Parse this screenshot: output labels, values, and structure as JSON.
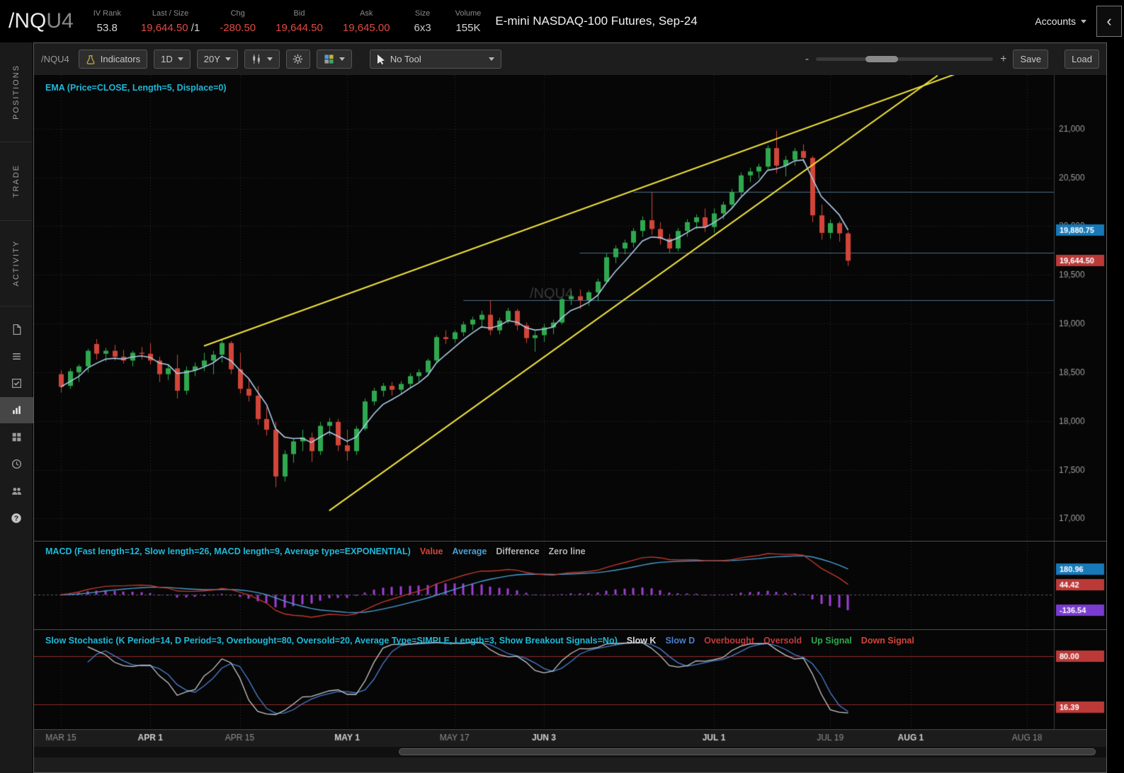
{
  "header": {
    "symbol": "/NQ",
    "symbol_suffix": "U4",
    "fields": [
      {
        "label": "IV Rank",
        "value": "53.8",
        "color": "#d8d8d8"
      },
      {
        "label": "Last / Size",
        "value": "19,644.50",
        "suffix": " /1",
        "color": "#e04a42"
      },
      {
        "label": "Chg",
        "value": "-280.50",
        "color": "#e04a42"
      },
      {
        "label": "Bid",
        "value": "19,644.50",
        "color": "#e04a42"
      },
      {
        "label": "Ask",
        "value": "19,645.00",
        "color": "#e04a42"
      },
      {
        "label": "Size",
        "value": "6x3",
        "color": "#c8c8c8"
      },
      {
        "label": "Volume",
        "value": "155K",
        "color": "#d8d8d8"
      }
    ],
    "description": "E-mini NASDAQ-100 Futures, Sep-24",
    "accounts_label": "Accounts"
  },
  "sidebar": {
    "tabs": [
      "POSITIONS",
      "TRADE",
      "ACTIVITY"
    ],
    "icons": [
      "document-icon",
      "list-icon",
      "checklist-icon",
      "chart-icon",
      "grid-icon",
      "clock-icon",
      "people-icon",
      "help-icon"
    ],
    "active_icon": "chart-icon"
  },
  "toolbar": {
    "symbol": "/NQU4",
    "indicators_label": "Indicators",
    "timeframe": "1D",
    "range": "20Y",
    "tool_label": "No Tool",
    "zoom_minus": "-",
    "zoom_plus": "+",
    "save_label": "Save",
    "load_label": "Load"
  },
  "chart_data": {
    "type": "candlestick",
    "symbol_watermark": "/NQU4",
    "up_color": "#2fa84f",
    "down_color": "#d24539",
    "price_axis": {
      "min": 16770,
      "max": 21550,
      "ticks": [
        {
          "v": 21000,
          "label": "21,000"
        },
        {
          "v": 20500,
          "label": "20,500"
        },
        {
          "v": 20000,
          "label": "20,000"
        },
        {
          "v": 19500,
          "label": "19,500"
        },
        {
          "v": 19000,
          "label": "19,000"
        },
        {
          "v": 18500,
          "label": "18,500"
        },
        {
          "v": 18000,
          "label": "18,000"
        },
        {
          "v": 17500,
          "label": "17,500"
        },
        {
          "v": 17000,
          "label": "17,000"
        }
      ]
    },
    "x_domain": {
      "left_pad_days": 3,
      "total_days": 114
    },
    "x_ticks": [
      {
        "label": "MAR 15",
        "day": 0,
        "bold": false
      },
      {
        "label": "APR 1",
        "day": 10,
        "bold": true
      },
      {
        "label": "APR 15",
        "day": 20,
        "bold": false
      },
      {
        "label": "MAY 1",
        "day": 32,
        "bold": true
      },
      {
        "label": "MAY 17",
        "day": 44,
        "bold": false
      },
      {
        "label": "JUN 3",
        "day": 54,
        "bold": true
      },
      {
        "label": "JUL 1",
        "day": 73,
        "bold": true
      },
      {
        "label": "JUL 19",
        "day": 86,
        "bold": false
      },
      {
        "label": "AUG 1",
        "day": 95,
        "bold": true
      },
      {
        "label": "AUG 18",
        "day": 108,
        "bold": false
      }
    ],
    "ema": {
      "label": "EMA (Price=CLOSE, Length=5, Displace=0)",
      "length": 5,
      "color": "#aecbe8"
    },
    "trendlines": [
      {
        "x1_day": 16,
        "y1_price": 18770,
        "x2_day": 100,
        "y2_price": 21560,
        "color": "#f0e33a"
      },
      {
        "x1_day": 30,
        "y1_price": 17080,
        "x2_day": 98,
        "y2_price": 21545,
        "color": "#f0e33a"
      }
    ],
    "horizontal_lines": [
      {
        "price": 20350,
        "from_day": 64,
        "color": "#4a7088"
      },
      {
        "price": 19730,
        "from_day": 58,
        "color": "#4a7088"
      },
      {
        "price": 19240,
        "from_day": 45,
        "color": "#4a7088"
      }
    ],
    "axis_badges": [
      {
        "text": "19,880.75",
        "series": "ema",
        "color": "#1779b8"
      },
      {
        "text": "19,644.50",
        "series": "last",
        "color": "#bb3a38"
      }
    ],
    "candles": [
      [
        "3/15",
        18480,
        18520,
        18290,
        18350
      ],
      [
        "3/18",
        18360,
        18540,
        18330,
        18510
      ],
      [
        "3/19",
        18500,
        18580,
        18400,
        18560
      ],
      [
        "3/20",
        18560,
        18740,
        18500,
        18720
      ],
      [
        "3/21",
        18790,
        18840,
        18630,
        18690
      ],
      [
        "3/22",
        18690,
        18750,
        18610,
        18720
      ],
      [
        "3/25",
        18720,
        18780,
        18620,
        18660
      ],
      [
        "3/26",
        18660,
        18730,
        18590,
        18620
      ],
      [
        "3/27",
        18620,
        18720,
        18560,
        18700
      ],
      [
        "3/28",
        18700,
        18760,
        18630,
        18690
      ],
      [
        "4/1",
        18690,
        18800,
        18580,
        18620
      ],
      [
        "4/2",
        18620,
        18660,
        18400,
        18480
      ],
      [
        "4/3",
        18480,
        18570,
        18420,
        18540
      ],
      [
        "4/4",
        18540,
        18680,
        18230,
        18310
      ],
      [
        "4/5",
        18310,
        18560,
        18270,
        18520
      ],
      [
        "4/8",
        18520,
        18600,
        18460,
        18560
      ],
      [
        "4/9",
        18560,
        18700,
        18510,
        18620
      ],
      [
        "4/10",
        18620,
        18720,
        18480,
        18680
      ],
      [
        "4/11",
        18680,
        18840,
        18600,
        18800
      ],
      [
        "4/12",
        18800,
        18820,
        18480,
        18530
      ],
      [
        "4/15",
        18530,
        18700,
        18280,
        18330
      ],
      [
        "4/16",
        18330,
        18430,
        18200,
        18260
      ],
      [
        "4/17",
        18260,
        18360,
        17960,
        18020
      ],
      [
        "4/18",
        18020,
        18140,
        17850,
        17910
      ],
      [
        "4/19",
        17910,
        17990,
        17320,
        17430
      ],
      [
        "4/22",
        17430,
        17700,
        17380,
        17660
      ],
      [
        "4/23",
        17660,
        17820,
        17570,
        17790
      ],
      [
        "4/24",
        17790,
        17910,
        17690,
        17830
      ],
      [
        "4/25",
        17830,
        17880,
        17580,
        17690
      ],
      [
        "4/26",
        17690,
        17990,
        17650,
        17950
      ],
      [
        "4/29",
        17950,
        18030,
        17850,
        17990
      ],
      [
        "4/30",
        17990,
        18020,
        17690,
        17750
      ],
      [
        "5/1",
        17750,
        17910,
        17590,
        17690
      ],
      [
        "5/2",
        17690,
        17950,
        17650,
        17920
      ],
      [
        "5/3",
        17920,
        18230,
        17900,
        18200
      ],
      [
        "5/6",
        18200,
        18340,
        18160,
        18310
      ],
      [
        "5/7",
        18310,
        18390,
        18250,
        18360
      ],
      [
        "5/8",
        18360,
        18400,
        18260,
        18320
      ],
      [
        "5/9",
        18320,
        18410,
        18270,
        18380
      ],
      [
        "5/10",
        18380,
        18490,
        18340,
        18460
      ],
      [
        "5/13",
        18460,
        18530,
        18400,
        18500
      ],
      [
        "5/14",
        18500,
        18640,
        18460,
        18620
      ],
      [
        "5/15",
        18620,
        18880,
        18600,
        18860
      ],
      [
        "5/16",
        18860,
        18930,
        18790,
        18840
      ],
      [
        "5/17",
        18840,
        18930,
        18800,
        18910
      ],
      [
        "5/20",
        18910,
        19020,
        18870,
        18990
      ],
      [
        "5/21",
        18990,
        19070,
        18930,
        19040
      ],
      [
        "5/22",
        19040,
        19130,
        18970,
        19090
      ],
      [
        "5/23",
        19090,
        19240,
        18880,
        18930
      ],
      [
        "5/24",
        18930,
        19060,
        18890,
        19030
      ],
      [
        "5/28",
        19030,
        19160,
        19000,
        19130
      ],
      [
        "5/29",
        19130,
        19150,
        18930,
        18980
      ],
      [
        "5/30",
        18980,
        19010,
        18800,
        18850
      ],
      [
        "5/31",
        18850,
        18920,
        18710,
        18880
      ],
      [
        "6/3",
        18880,
        19000,
        18810,
        18960
      ],
      [
        "6/4",
        18960,
        19040,
        18890,
        19010
      ],
      [
        "6/5",
        19010,
        19270,
        18990,
        19250
      ],
      [
        "6/6",
        19250,
        19340,
        19190,
        19280
      ],
      [
        "6/7",
        19280,
        19350,
        19150,
        19240
      ],
      [
        "6/10",
        19240,
        19340,
        19180,
        19320
      ],
      [
        "6/11",
        19320,
        19460,
        19230,
        19430
      ],
      [
        "6/12",
        19430,
        19720,
        19410,
        19680
      ],
      [
        "6/13",
        19680,
        19800,
        19620,
        19770
      ],
      [
        "6/14",
        19770,
        19860,
        19710,
        19830
      ],
      [
        "6/17",
        19830,
        19980,
        19780,
        19950
      ],
      [
        "6/18",
        19950,
        20100,
        19890,
        20060
      ],
      [
        "6/20",
        20060,
        20350,
        19910,
        19970
      ],
      [
        "6/21",
        19970,
        20040,
        19810,
        19870
      ],
      [
        "6/24",
        19870,
        19920,
        19720,
        19770
      ],
      [
        "6/25",
        19770,
        19980,
        19740,
        19950
      ],
      [
        "6/26",
        19950,
        20070,
        19890,
        20040
      ],
      [
        "6/27",
        20040,
        20120,
        19970,
        20090
      ],
      [
        "6/28",
        20090,
        20180,
        19940,
        19990
      ],
      [
        "7/1",
        19990,
        20180,
        19930,
        20130
      ],
      [
        "7/2",
        20130,
        20250,
        20070,
        20220
      ],
      [
        "7/3",
        20220,
        20380,
        20180,
        20350
      ],
      [
        "7/5",
        20350,
        20550,
        20310,
        20520
      ],
      [
        "7/8",
        20520,
        20600,
        20450,
        20560
      ],
      [
        "7/9",
        20560,
        20640,
        20490,
        20610
      ],
      [
        "7/10",
        20610,
        20830,
        20580,
        20800
      ],
      [
        "7/11",
        20800,
        20980,
        20540,
        20620
      ],
      [
        "7/12",
        20620,
        20720,
        20510,
        20680
      ],
      [
        "7/15",
        20680,
        20800,
        20620,
        20770
      ],
      [
        "7/16",
        20770,
        20840,
        20650,
        20700
      ],
      [
        "7/17",
        20700,
        20720,
        20040,
        20110
      ],
      [
        "7/18",
        20110,
        20220,
        19860,
        19930
      ],
      [
        "7/19",
        19930,
        20070,
        19870,
        20030
      ],
      [
        "7/22",
        20030,
        20050,
        19840,
        19925
      ],
      [
        "7/23",
        19925,
        19945,
        19590,
        19644.5
      ]
    ]
  },
  "macd": {
    "label": "MACD (Fast length=12, Slow length=26, MACD length=9, Average type=EXPONENTIAL)",
    "params": {
      "fast": 12,
      "slow": 26,
      "length": 9,
      "average_type": "EXPONENTIAL"
    },
    "legend": [
      {
        "label": "Value",
        "color": "#d24539"
      },
      {
        "label": "Average",
        "color": "#4a9fd4"
      },
      {
        "label": "Difference",
        "color": "#b0b0b0"
      },
      {
        "label": "Zero line",
        "color": "#b0b0b0"
      }
    ],
    "histogram_color": "#a13dd6",
    "value_color": "#c0392b",
    "average_color": "#4a9fd4",
    "badges": [
      {
        "text": "180.96",
        "series": "average",
        "color": "#1779b8"
      },
      {
        "text": "44.42",
        "series": "value",
        "color": "#bb3a38"
      },
      {
        "text": "-136.54",
        "series": "difference",
        "color": "#7a3bd0"
      }
    ]
  },
  "stochastic": {
    "label": "Slow Stochastic (K Period=14, D Period=3, Overbought=80, Oversold=20, Average Type=SIMPLE, Length=3, Show Breakout Signals=No)",
    "params": {
      "k_period": 14,
      "d_period": 3,
      "overbought": 80,
      "oversold": 20,
      "average_type": "SIMPLE",
      "length": 3
    },
    "legend": [
      {
        "label": "Slow K",
        "color": "#d8d8d8"
      },
      {
        "label": "Slow D",
        "color": "#4a7fd0"
      },
      {
        "label": "Overbought",
        "color": "#c23b3b"
      },
      {
        "label": "Oversold",
        "color": "#c23b3b"
      },
      {
        "label": "Up Signal",
        "color": "#2fa84f"
      },
      {
        "label": "Down Signal",
        "color": "#d24539"
      }
    ],
    "overbought": 80,
    "oversold": 20,
    "k_color": "#c8c8c8",
    "d_color": "#4a7fd0",
    "band_color": "#8e2b2b",
    "badges": [
      {
        "text": "80.00",
        "value": 80,
        "color": "#bb3a38"
      },
      {
        "text": "16.39",
        "value": 16.39,
        "color": "#bb3a38"
      }
    ]
  }
}
